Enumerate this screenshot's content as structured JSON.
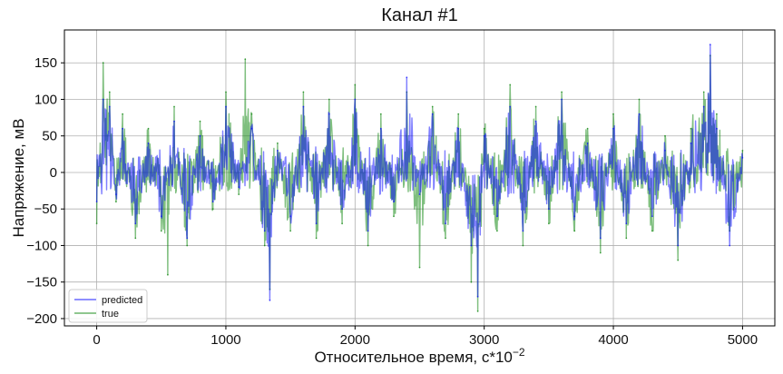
{
  "chart_data": {
    "type": "line",
    "title": "Канал #1",
    "xlabel": "Относительное время, с*10",
    "xlabel_exponent": "−2",
    "ylabel": "Напряжение, мВ",
    "xlim": [
      -250,
      5250
    ],
    "ylim": [
      -210,
      195
    ],
    "x_ticks": [
      0,
      1000,
      2000,
      3000,
      4000,
      5000
    ],
    "y_ticks": [
      -200,
      -150,
      -100,
      -50,
      0,
      50,
      100,
      150
    ],
    "x_tick_labels": [
      "0",
      "1000",
      "2000",
      "3000",
      "4000",
      "5000"
    ],
    "y_tick_labels": [
      "−200",
      "−150",
      "−100",
      "−50",
      "0",
      "50",
      "100",
      "150"
    ],
    "grid": true,
    "legend_position": "lower-left",
    "series": [
      {
        "name": "predicted",
        "color": "#0000ff",
        "x": [
          0,
          50,
          100,
          150,
          200,
          300,
          400,
          500,
          600,
          700,
          800,
          900,
          1000,
          1100,
          1200,
          1300,
          1340,
          1400,
          1500,
          1600,
          1700,
          1800,
          1900,
          2000,
          2100,
          2200,
          2300,
          2400,
          2500,
          2600,
          2700,
          2800,
          2900,
          2950,
          3000,
          3100,
          3200,
          3300,
          3400,
          3500,
          3600,
          3700,
          3800,
          3900,
          4000,
          4100,
          4200,
          4300,
          4400,
          4500,
          4600,
          4700,
          4750,
          4800,
          4900,
          5000
        ],
        "y": [
          -40,
          100,
          90,
          -30,
          60,
          -70,
          40,
          -60,
          70,
          -90,
          50,
          -40,
          90,
          -20,
          60,
          -80,
          -175,
          30,
          -60,
          90,
          -70,
          80,
          -50,
          100,
          -80,
          60,
          -40,
          130,
          -30,
          80,
          -70,
          60,
          -100,
          -170,
          50,
          -60,
          90,
          -80,
          70,
          -50,
          100,
          -60,
          40,
          -90,
          60,
          -70,
          80,
          -60,
          30,
          -100,
          40,
          90,
          175,
          60,
          -100,
          20
        ]
      },
      {
        "name": "true",
        "color": "#008000",
        "x": [
          0,
          50,
          100,
          150,
          200,
          300,
          400,
          500,
          550,
          600,
          700,
          800,
          900,
          1000,
          1100,
          1150,
          1200,
          1300,
          1340,
          1400,
          1500,
          1600,
          1700,
          1800,
          1900,
          2000,
          2100,
          2200,
          2300,
          2400,
          2500,
          2600,
          2700,
          2800,
          2900,
          2950,
          3000,
          3100,
          3200,
          3300,
          3400,
          3500,
          3600,
          3700,
          3800,
          3900,
          4000,
          4100,
          4200,
          4300,
          4400,
          4500,
          4600,
          4700,
          4750,
          4800,
          4900,
          5000
        ],
        "y": [
          -70,
          150,
          110,
          -40,
          80,
          -90,
          60,
          -80,
          -140,
          90,
          -100,
          70,
          -50,
          110,
          -30,
          155,
          80,
          -100,
          -160,
          40,
          -80,
          110,
          -90,
          100,
          -70,
          120,
          -100,
          80,
          -60,
          110,
          -130,
          90,
          -90,
          80,
          -150,
          -190,
          60,
          -80,
          120,
          -100,
          90,
          -70,
          110,
          -80,
          60,
          -110,
          80,
          -90,
          100,
          -80,
          50,
          -120,
          60,
          110,
          160,
          80,
          -80,
          30
        ]
      }
    ]
  }
}
